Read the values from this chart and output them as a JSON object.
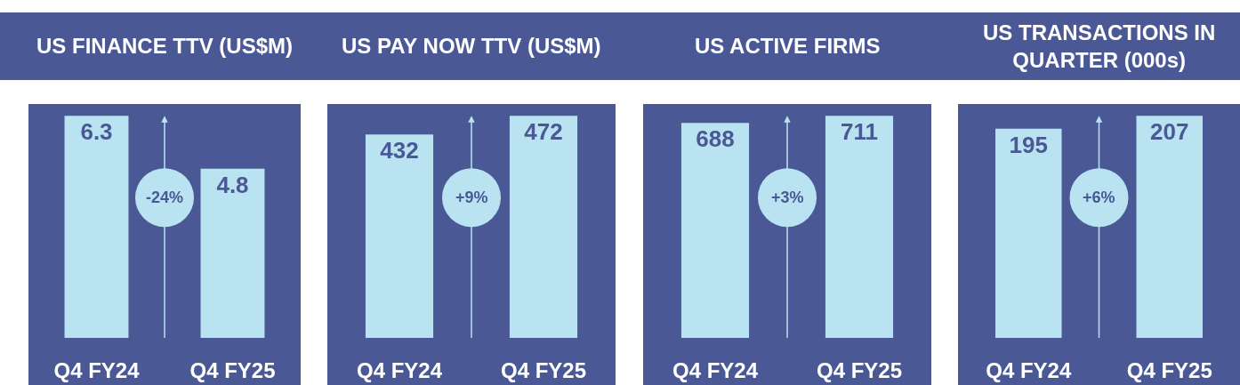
{
  "chart_data": [
    {
      "type": "bar",
      "title": "US FINANCE TTV (US$M)",
      "categories": [
        "Q4 FY24",
        "Q4 FY25"
      ],
      "values": [
        6.3,
        4.8
      ],
      "color": "#bae3f1",
      "data_labels": true,
      "tick_labels": "x",
      "annotations": [
        "-24%"
      ]
    },
    {
      "type": "bar",
      "title": "US PAY NOW TTV (US$M)",
      "categories": [
        "Q4 FY24",
        "Q4 FY25"
      ],
      "values": [
        432,
        472
      ],
      "color": "#bae3f1",
      "data_labels": true,
      "tick_labels": "x",
      "annotations": [
        "+9%"
      ]
    },
    {
      "type": "bar",
      "title": "US ACTIVE FIRMS",
      "categories": [
        "Q4 FY24",
        "Q4 FY25"
      ],
      "values": [
        688,
        711
      ],
      "color": "#bae3f1",
      "data_labels": true,
      "tick_labels": "x",
      "annotations": [
        "+3%"
      ]
    },
    {
      "type": "bar",
      "title": "US TRANSACTIONS IN QUARTER (000s)",
      "categories": [
        "Q4 FY24",
        "Q4 FY25"
      ],
      "values": [
        195,
        207
      ],
      "color": "#bae3f1",
      "data_labels": true,
      "tick_labels": "x",
      "annotations": [
        "+6%"
      ]
    }
  ]
}
